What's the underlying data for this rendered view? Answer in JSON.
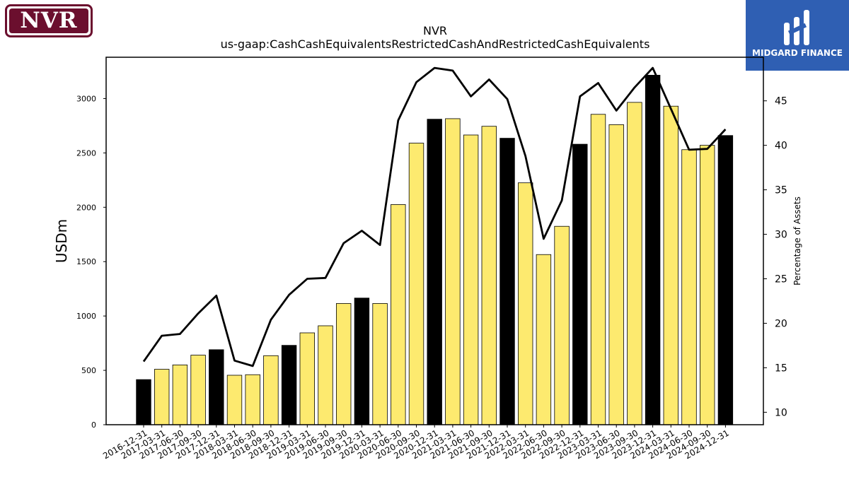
{
  "logos": {
    "left": {
      "text": "NVR",
      "color": "#6b0f2e"
    },
    "right": {
      "text": "MIDGARD FINANCE",
      "color": "#2f5fb3"
    }
  },
  "chart_data": {
    "type": "bar",
    "title": "NVR",
    "subtitle": "us-gaap:CashCashEquivalentsRestrictedCashAndRestrictedCashEquivalents",
    "ylabel": "USDm",
    "y2label": "Percentage of Assets",
    "ylim": [
      0,
      3380
    ],
    "y2lim": [
      8.6,
      49.9
    ],
    "yticks": [
      0,
      500,
      1000,
      1500,
      2000,
      2500,
      3000
    ],
    "y2ticks": [
      10,
      15,
      20,
      25,
      30,
      35,
      40,
      45
    ],
    "grid": false,
    "categories": [
      "2016-12-31",
      "2017-03-31",
      "2017-06-30",
      "2017-09-30",
      "2017-12-31",
      "2018-03-31",
      "2018-06-30",
      "2018-09-30",
      "2018-12-31",
      "2019-03-31",
      "2019-06-30",
      "2019-09-30",
      "2019-12-31",
      "2020-03-31",
      "2020-06-30",
      "2020-09-30",
      "2020-12-31",
      "2021-03-31",
      "2021-06-30",
      "2021-09-30",
      "2021-12-31",
      "2022-03-31",
      "2022-06-30",
      "2022-09-30",
      "2022-12-31",
      "2023-03-31",
      "2023-06-30",
      "2023-09-30",
      "2023-12-31",
      "2024-03-31",
      "2024-06-30",
      "2024-09-30",
      "2024-12-31"
    ],
    "series": [
      {
        "type": "bar",
        "values": [
          415,
          510,
          550,
          640,
          690,
          455,
          460,
          635,
          730,
          845,
          910,
          1115,
          1165,
          1115,
          2025,
          2590,
          2810,
          2815,
          2665,
          2745,
          2635,
          2225,
          1565,
          1825,
          2580,
          2855,
          2760,
          2965,
          3215,
          2930,
          2530,
          2570,
          2660
        ]
      },
      {
        "type": "line",
        "axis": "right",
        "values": [
          15.7,
          18.6,
          18.8,
          21.1,
          23.1,
          15.8,
          15.2,
          20.4,
          23.2,
          25.0,
          25.1,
          29.0,
          30.4,
          28.8,
          42.8,
          47.1,
          48.7,
          48.4,
          45.5,
          47.4,
          45.2,
          38.8,
          29.5,
          33.8,
          45.5,
          47.0,
          43.9,
          46.5,
          48.7,
          44.1,
          39.5,
          39.6,
          41.8
        ]
      }
    ],
    "colors": {
      "bar_default": "#fdea6f",
      "bar_highlight": "#000000",
      "line": "#000000"
    },
    "highlight_categories": [
      "2016-12-31",
      "2017-12-31",
      "2018-12-31",
      "2019-12-31",
      "2020-12-31",
      "2021-12-31",
      "2022-12-31",
      "2023-12-31",
      "2024-12-31"
    ]
  }
}
